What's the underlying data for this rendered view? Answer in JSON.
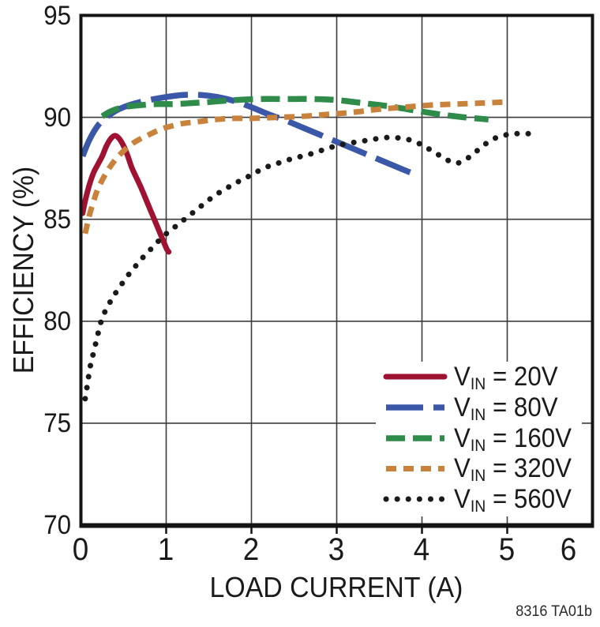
{
  "annotation": "8316 TA01b",
  "chart_data": {
    "type": "line",
    "title": "",
    "xlabel": "LOAD CURRENT (A)",
    "ylabel": "EFFICIENCY (%)",
    "xlim": [
      0,
      6
    ],
    "ylim": [
      70,
      95
    ],
    "x_ticks": [
      "0",
      "1",
      "2",
      "3",
      "4",
      "5",
      "6"
    ],
    "y_ticks": [
      "95",
      "90",
      "85",
      "80",
      "75",
      "70"
    ],
    "grid": true,
    "legend_position": "lower right",
    "colors": {
      "grid": "#3c3c3c",
      "axis": "#141414",
      "text": "#1a1a1a"
    },
    "series": [
      {
        "id": "vin-20v",
        "name": "VIN = 20V",
        "legend": {
          "pre": "V",
          "sub": "IN",
          "post": " = 20V"
        },
        "color": "#A01231",
        "line_style": "solid",
        "points": [
          [
            0.02,
            85.3
          ],
          [
            0.05,
            85.9
          ],
          [
            0.1,
            86.7
          ],
          [
            0.15,
            87.3
          ],
          [
            0.2,
            87.7
          ],
          [
            0.25,
            88.1
          ],
          [
            0.3,
            88.6
          ],
          [
            0.35,
            88.95
          ],
          [
            0.4,
            89.1
          ],
          [
            0.45,
            88.95
          ],
          [
            0.5,
            88.6
          ],
          [
            0.55,
            88.1
          ],
          [
            0.6,
            87.5
          ],
          [
            0.7,
            86.6
          ],
          [
            0.8,
            85.6
          ],
          [
            0.9,
            84.6
          ],
          [
            1.0,
            83.6
          ],
          [
            1.03,
            83.4
          ]
        ]
      },
      {
        "id": "vin-80v",
        "name": "VIN = 80V",
        "legend": {
          "pre": "V",
          "sub": "IN",
          "post": " = 80V"
        },
        "color": "#3A57A8",
        "line_style": "long-dash",
        "points": [
          [
            0.02,
            88.1
          ],
          [
            0.1,
            88.9
          ],
          [
            0.2,
            89.6
          ],
          [
            0.3,
            90.0
          ],
          [
            0.4,
            90.3
          ],
          [
            0.5,
            90.5
          ],
          [
            0.65,
            90.7
          ],
          [
            0.8,
            90.85
          ],
          [
            1.0,
            91.0
          ],
          [
            1.2,
            91.1
          ],
          [
            1.4,
            91.1
          ],
          [
            1.6,
            91.0
          ],
          [
            1.8,
            90.8
          ],
          [
            2.0,
            90.5
          ],
          [
            2.2,
            90.15
          ],
          [
            2.4,
            89.85
          ],
          [
            2.6,
            89.5
          ],
          [
            2.8,
            89.15
          ],
          [
            3.0,
            88.8
          ],
          [
            3.2,
            88.45
          ],
          [
            3.4,
            88.1
          ],
          [
            3.6,
            87.75
          ],
          [
            3.8,
            87.4
          ],
          [
            3.92,
            87.2
          ]
        ]
      },
      {
        "id": "vin-160v",
        "name": "VIN = 160V",
        "legend": {
          "pre": "V",
          "sub": "IN",
          "post": " = 160V"
        },
        "color": "#2E8B4A",
        "line_style": "dash",
        "points": [
          [
            0.25,
            90.05
          ],
          [
            0.35,
            90.3
          ],
          [
            0.5,
            90.5
          ],
          [
            0.7,
            90.6
          ],
          [
            0.9,
            90.65
          ],
          [
            1.1,
            90.65
          ],
          [
            1.3,
            90.7
          ],
          [
            1.5,
            90.75
          ],
          [
            1.8,
            90.85
          ],
          [
            2.1,
            90.9
          ],
          [
            2.4,
            90.9
          ],
          [
            2.7,
            90.9
          ],
          [
            3.0,
            90.85
          ],
          [
            3.3,
            90.7
          ],
          [
            3.6,
            90.55
          ],
          [
            3.9,
            90.35
          ],
          [
            4.2,
            90.15
          ],
          [
            4.5,
            90.0
          ],
          [
            4.78,
            89.9
          ]
        ]
      },
      {
        "id": "vin-320v",
        "name": "VIN = 320V",
        "legend": {
          "pre": "V",
          "sub": "IN",
          "post": " = 320V"
        },
        "color": "#C9823C",
        "line_style": "short-dash",
        "points": [
          [
            0.05,
            84.3
          ],
          [
            0.1,
            85.2
          ],
          [
            0.15,
            85.9
          ],
          [
            0.2,
            86.5
          ],
          [
            0.3,
            87.3
          ],
          [
            0.4,
            87.9
          ],
          [
            0.5,
            88.35
          ],
          [
            0.6,
            88.7
          ],
          [
            0.7,
            88.95
          ],
          [
            0.8,
            89.15
          ],
          [
            0.9,
            89.35
          ],
          [
            1.0,
            89.5
          ],
          [
            1.2,
            89.7
          ],
          [
            1.4,
            89.8
          ],
          [
            1.6,
            89.9
          ],
          [
            1.8,
            89.95
          ],
          [
            2.0,
            89.95
          ],
          [
            2.3,
            90.0
          ],
          [
            2.6,
            90.05
          ],
          [
            2.9,
            90.15
          ],
          [
            3.2,
            90.25
          ],
          [
            3.5,
            90.4
          ],
          [
            3.8,
            90.5
          ],
          [
            4.1,
            90.6
          ],
          [
            4.4,
            90.65
          ],
          [
            4.7,
            90.7
          ],
          [
            4.97,
            90.75
          ]
        ]
      },
      {
        "id": "vin-560v",
        "name": "VIN = 560V",
        "legend": {
          "pre": "V",
          "sub": "IN",
          "post": " = 560V"
        },
        "color": "#1A1A1A",
        "line_style": "dotted",
        "points": [
          [
            0.05,
            76.2
          ],
          [
            0.08,
            77.0
          ],
          [
            0.11,
            77.8
          ],
          [
            0.15,
            78.5
          ],
          [
            0.19,
            79.2
          ],
          [
            0.23,
            79.9
          ],
          [
            0.28,
            80.45
          ],
          [
            0.33,
            80.85
          ],
          [
            0.38,
            81.2
          ],
          [
            0.44,
            81.6
          ],
          [
            0.51,
            82.0
          ],
          [
            0.58,
            82.4
          ],
          [
            0.65,
            82.75
          ],
          [
            0.72,
            83.1
          ],
          [
            0.8,
            83.45
          ],
          [
            0.88,
            83.8
          ],
          [
            0.96,
            84.15
          ],
          [
            1.05,
            84.45
          ],
          [
            1.14,
            84.75
          ],
          [
            1.23,
            85.05
          ],
          [
            1.32,
            85.35
          ],
          [
            1.41,
            85.65
          ],
          [
            1.5,
            85.95
          ],
          [
            1.6,
            86.25
          ],
          [
            1.7,
            86.5
          ],
          [
            1.8,
            86.75
          ],
          [
            1.92,
            87.0
          ],
          [
            2.05,
            87.3
          ],
          [
            2.2,
            87.6
          ],
          [
            2.35,
            87.8
          ],
          [
            2.5,
            88.0
          ],
          [
            2.65,
            88.15
          ],
          [
            2.8,
            88.35
          ],
          [
            2.95,
            88.55
          ],
          [
            3.1,
            88.7
          ],
          [
            3.25,
            88.8
          ],
          [
            3.4,
            88.9
          ],
          [
            3.55,
            89.0
          ],
          [
            3.7,
            89.0
          ],
          [
            3.85,
            88.9
          ],
          [
            4.0,
            88.65
          ],
          [
            4.1,
            88.4
          ],
          [
            4.2,
            88.15
          ],
          [
            4.3,
            87.9
          ],
          [
            4.4,
            87.75
          ],
          [
            4.5,
            87.9
          ],
          [
            4.6,
            88.2
          ],
          [
            4.7,
            88.55
          ],
          [
            4.8,
            88.85
          ],
          [
            4.9,
            89.05
          ],
          [
            5.0,
            89.15
          ],
          [
            5.1,
            89.2
          ],
          [
            5.22,
            89.2
          ],
          [
            5.35,
            89.2
          ]
        ]
      }
    ]
  }
}
